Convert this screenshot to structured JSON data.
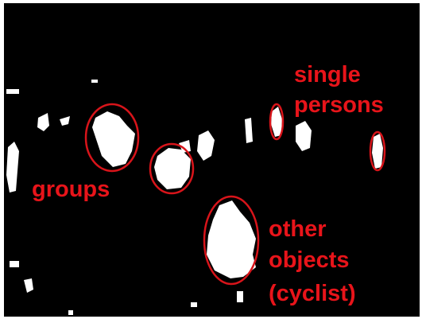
{
  "annotations": [
    {
      "lines": [
        "single",
        "persons"
      ]
    },
    {
      "lines": [
        "groups"
      ]
    },
    {
      "lines": [
        "other",
        "objects",
        "(cyclist)"
      ]
    }
  ]
}
